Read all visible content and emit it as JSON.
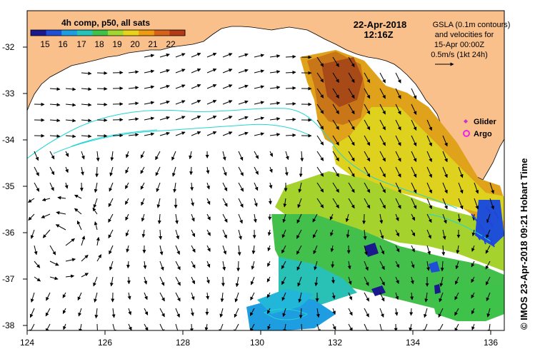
{
  "colorbar": {
    "title": "4h comp, p50, all sats",
    "ticks": [
      "15",
      "16",
      "17",
      "18",
      "19",
      "20",
      "21",
      "22"
    ],
    "colors": [
      "#1a1a8c",
      "#1f4fd6",
      "#1e9de0",
      "#27c3b8",
      "#3fc24a",
      "#9fd630",
      "#e9d21a",
      "#ef9b12",
      "#d6611a",
      "#b23a16"
    ]
  },
  "date": {
    "day": "22-Apr-2018",
    "time": "12:16Z"
  },
  "gsla_note": {
    "line1": "GSLA (0.1m contours)",
    "line2": "and velocities for",
    "line3": "15-Apr 00:00Z",
    "line4": "0.5m/s (1kt 24h)"
  },
  "legend": {
    "glider": "Glider",
    "argo": "Argo",
    "glider_color": "#cc33cc",
    "argo_color": "#ee22ee"
  },
  "axes": {
    "lat_labels": [
      "-32",
      "-33",
      "-34",
      "-35",
      "-36",
      "-37",
      "-38"
    ],
    "lon_labels": [
      "124",
      "126",
      "128",
      "130",
      "132",
      "134",
      "136"
    ]
  },
  "credit": "©  IMOS 23-Apr-2018 09:21 Hobart Time",
  "colors": {
    "land": "#f9c08c",
    "ocean": "#ffffff",
    "contour": "#22d4d4"
  }
}
